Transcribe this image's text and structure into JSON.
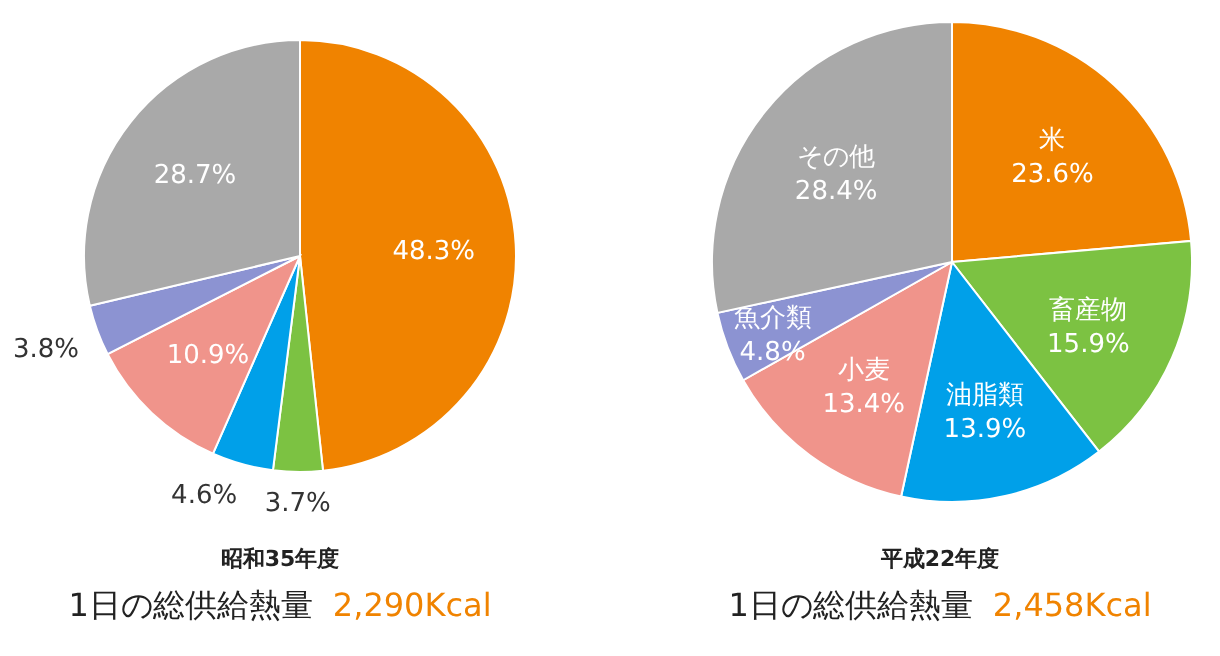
{
  "chart_data": [
    {
      "type": "pie",
      "title": "昭和35年度",
      "subtitle": "1日の総供給熱量",
      "annotations": [
        "2,290Kcal"
      ],
      "categories": [
        null,
        null,
        null,
        null,
        null,
        null
      ],
      "values": [
        48.3,
        3.7,
        4.6,
        10.9,
        3.8,
        28.7
      ],
      "value_labels": [
        "48.3%",
        "3.7%",
        "4.6%",
        "10.9%",
        "3.8%",
        "28.7%"
      ],
      "colors": [
        "#f08300",
        "#7cc242",
        "#00a0e9",
        "#f0948b",
        "#8c93d2",
        "#a9a9a9"
      ]
    },
    {
      "type": "pie",
      "title": "平成22年度",
      "subtitle": "1日の総供給熱量",
      "annotations": [
        "2,458Kcal"
      ],
      "categories": [
        "米",
        "畜産物",
        "油脂類",
        "小麦",
        "魚介類",
        "その他"
      ],
      "values": [
        23.6,
        15.9,
        13.9,
        13.4,
        4.8,
        28.4
      ],
      "value_labels": [
        "23.6%",
        "15.9%",
        "13.9%",
        "13.4%",
        "4.8%",
        "28.4%"
      ],
      "colors": [
        "#f08300",
        "#7cc242",
        "#00a0e9",
        "#f0948b",
        "#8c93d2",
        "#a9a9a9"
      ]
    }
  ]
}
